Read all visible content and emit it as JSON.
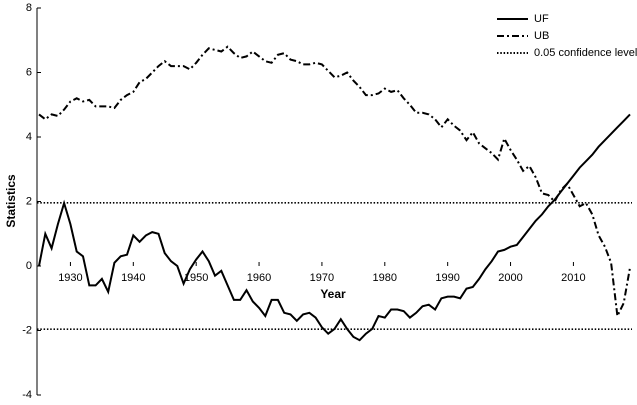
{
  "chart_data": {
    "type": "line",
    "x_label": "Year",
    "y_label": "Statistics",
    "x": [
      1925,
      1926,
      1927,
      1928,
      1929,
      1930,
      1931,
      1932,
      1933,
      1934,
      1935,
      1936,
      1937,
      1938,
      1939,
      1940,
      1941,
      1942,
      1943,
      1944,
      1945,
      1946,
      1947,
      1948,
      1949,
      1950,
      1951,
      1952,
      1953,
      1954,
      1955,
      1956,
      1957,
      1958,
      1959,
      1960,
      1961,
      1962,
      1963,
      1964,
      1965,
      1966,
      1967,
      1968,
      1969,
      1970,
      1971,
      1972,
      1973,
      1974,
      1975,
      1976,
      1977,
      1978,
      1979,
      1980,
      1981,
      1982,
      1983,
      1984,
      1985,
      1986,
      1987,
      1988,
      1989,
      1990,
      1991,
      1992,
      1993,
      1994,
      1995,
      1996,
      1997,
      1998,
      1999,
      2000,
      2001,
      2002,
      2003,
      2004,
      2005,
      2006,
      2007,
      2008,
      2009,
      2010,
      2011,
      2012,
      2013,
      2014,
      2015,
      2016,
      2017,
      2018,
      2019
    ],
    "series": [
      {
        "name": "UF",
        "color": "#000000",
        "dash": "solid",
        "values": [
          0,
          1.0,
          0.55,
          1.3,
          1.95,
          1.3,
          0.45,
          0.3,
          -0.6,
          -0.6,
          -0.4,
          -0.8,
          0.1,
          0.3,
          0.35,
          0.95,
          0.75,
          0.95,
          1.05,
          1.0,
          0.4,
          0.15,
          0.0,
          -0.55,
          -0.1,
          0.2,
          0.45,
          0.15,
          -0.3,
          -0.15,
          -0.6,
          -1.05,
          -1.05,
          -0.75,
          -1.1,
          -1.3,
          -1.55,
          -1.05,
          -1.05,
          -1.45,
          -1.5,
          -1.7,
          -1.5,
          -1.45,
          -1.6,
          -1.9,
          -2.1,
          -1.95,
          -1.65,
          -1.95,
          -2.2,
          -2.3,
          -2.1,
          -1.95,
          -1.55,
          -1.6,
          -1.35,
          -1.35,
          -1.4,
          -1.6,
          -1.45,
          -1.25,
          -1.2,
          -1.35,
          -1.0,
          -0.95,
          -0.95,
          -1.0,
          -0.7,
          -0.65,
          -0.4,
          -0.1,
          0.15,
          0.45,
          0.5,
          0.6,
          0.65,
          0.9,
          1.15,
          1.4,
          1.6,
          1.85,
          2.05,
          2.3,
          2.55,
          2.8,
          3.05,
          3.25,
          3.45,
          3.7,
          3.9,
          4.1,
          4.3,
          4.5,
          4.7
        ]
      },
      {
        "name": "UB",
        "color": "#000000",
        "dash": "dashdot",
        "values": [
          4.7,
          4.55,
          4.7,
          4.65,
          4.85,
          5.1,
          5.2,
          5.1,
          5.15,
          4.95,
          4.95,
          4.95,
          4.9,
          5.15,
          5.3,
          5.4,
          5.7,
          5.8,
          6.0,
          6.2,
          6.35,
          6.2,
          6.2,
          6.2,
          6.1,
          6.3,
          6.55,
          6.75,
          6.7,
          6.65,
          6.8,
          6.6,
          6.45,
          6.5,
          6.65,
          6.5,
          6.35,
          6.3,
          6.55,
          6.6,
          6.4,
          6.35,
          6.25,
          6.25,
          6.3,
          6.25,
          6.05,
          5.85,
          5.9,
          6.0,
          5.75,
          5.55,
          5.3,
          5.3,
          5.35,
          5.5,
          5.4,
          5.45,
          5.2,
          5.0,
          4.75,
          4.75,
          4.7,
          4.55,
          4.3,
          4.55,
          4.35,
          4.2,
          3.9,
          4.15,
          3.8,
          3.65,
          3.5,
          3.3,
          3.95,
          3.6,
          3.3,
          2.95,
          3.1,
          2.75,
          2.25,
          2.2,
          2.0,
          2.35,
          2.55,
          2.2,
          1.85,
          1.95,
          1.6,
          0.95,
          0.6,
          0.1,
          -1.55,
          -1.15,
          -0.05
        ]
      }
    ],
    "reference_lines": {
      "name": "0.05 confidence level",
      "color": "#000000",
      "dash": "dotted",
      "values": [
        1.96,
        -1.96
      ]
    },
    "xlim": [
      1925,
      2019
    ],
    "ylim": [
      -4,
      8
    ],
    "xticks": [
      1930,
      1940,
      1950,
      1960,
      1970,
      1980,
      1990,
      2000,
      2010
    ],
    "yticks": [
      -4,
      -2,
      0,
      2,
      4,
      6,
      8
    ],
    "legend": "upper right"
  }
}
